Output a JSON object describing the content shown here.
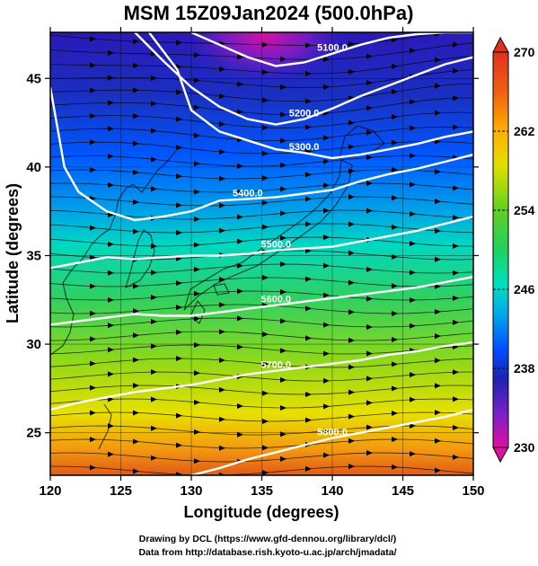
{
  "chart_data": {
    "type": "heatmap",
    "title": "MSM 15Z09Jan2024 (500.0hPa)",
    "xlabel": "Longitude (degrees)",
    "ylabel": "Latitude  (degrees)",
    "xlim": [
      120,
      150
    ],
    "ylim": [
      22.6,
      47.6
    ],
    "x_ticks": [
      120,
      125,
      130,
      135,
      140,
      145,
      150
    ],
    "y_ticks": [
      25,
      30,
      35,
      40,
      45
    ],
    "x_tick_labels": [
      "120",
      "125",
      "130",
      "135",
      "140",
      "145",
      "150"
    ],
    "y_tick_labels": [
      "25",
      "30",
      "35",
      "40",
      "45"
    ],
    "colorbar": {
      "min": 230,
      "max": 270,
      "tick_labels": [
        "270",
        "262",
        "254",
        "246",
        "238",
        "230"
      ],
      "tick_values": [
        270,
        262,
        254,
        246,
        238,
        230
      ],
      "colors": [
        "#e0109f",
        "#7a20c8",
        "#1a24b0",
        "#0050ff",
        "#00a8e8",
        "#00e0c0",
        "#20d060",
        "#60d020",
        "#e0e000",
        "#ffb000",
        "#f06010",
        "#e03020"
      ],
      "color_stops": [
        230,
        233.5,
        237,
        240,
        243.5,
        246.5,
        250,
        254,
        258.5,
        262,
        266,
        270
      ]
    },
    "contours": [
      {
        "label": "5100.0",
        "lons": [
          130,
          132,
          134,
          136,
          138,
          140,
          142,
          144,
          146,
          148,
          150
        ],
        "lats": [
          47.6,
          46.9,
          46.2,
          45.7,
          45.9,
          46.4,
          46.9,
          47.3,
          47.5,
          47.6,
          47.6
        ]
      },
      {
        "label": "5200.0",
        "lons": [
          126,
          128,
          130,
          132,
          134,
          136,
          138,
          140,
          142,
          144,
          146,
          148,
          150
        ],
        "lats": [
          47.6,
          46.0,
          44.5,
          43.4,
          42.7,
          42.4,
          42.7,
          43.3,
          44.0,
          44.6,
          45.2,
          45.8,
          46.2
        ]
      },
      {
        "label": "5300.0",
        "lons": [
          127,
          129,
          130,
          132,
          134,
          136,
          138,
          140,
          142,
          144,
          146,
          148,
          150
        ],
        "lats": [
          47.6,
          45.5,
          43.2,
          42.0,
          41.5,
          41.0,
          40.8,
          40.5,
          40.7,
          41.0,
          41.3,
          41.7,
          42.0
        ]
      },
      {
        "label": "5400.0",
        "lons": [
          120,
          121,
          122,
          124,
          126,
          128,
          130,
          132,
          134,
          136,
          138,
          140,
          142,
          144,
          146,
          148,
          150
        ],
        "lats": [
          44.5,
          40.0,
          38.6,
          37.5,
          37.0,
          37.2,
          37.5,
          38.1,
          38.2,
          38.3,
          38.5,
          38.7,
          39.2,
          39.6,
          39.9,
          40.3,
          40.7
        ]
      },
      {
        "label": "5500.0",
        "lons": [
          120,
          122,
          124,
          126,
          128,
          130,
          132,
          134,
          136,
          138,
          140,
          142,
          144,
          146,
          148,
          150
        ],
        "lats": [
          34.3,
          34.6,
          34.9,
          34.8,
          34.9,
          35.0,
          35.0,
          35.1,
          35.3,
          35.4,
          35.5,
          35.8,
          36.1,
          36.4,
          36.8,
          37.2
        ]
      },
      {
        "label": "5600.0",
        "lons": [
          120,
          122,
          124,
          126,
          128,
          130,
          132,
          134,
          136,
          138,
          140,
          142,
          144,
          146,
          148,
          150
        ],
        "lats": [
          31.1,
          31.3,
          31.5,
          31.7,
          31.6,
          31.6,
          31.8,
          32.0,
          32.2,
          32.4,
          32.6,
          32.8,
          33.0,
          33.2,
          33.5,
          33.8
        ]
      },
      {
        "label": "5700.0",
        "lons": [
          120,
          122,
          124,
          126,
          128,
          130,
          132,
          134,
          136,
          138,
          140,
          142,
          144,
          146,
          148,
          150
        ],
        "lats": [
          26.3,
          26.7,
          27.0,
          27.3,
          27.5,
          27.7,
          28.0,
          28.3,
          28.5,
          28.7,
          28.9,
          29.1,
          29.4,
          29.6,
          29.9,
          30.1
        ]
      },
      {
        "label": "5800.0",
        "lons": [
          130,
          132,
          134,
          136,
          138,
          140,
          142,
          144,
          146,
          148,
          150
        ],
        "lats": [
          22.6,
          23.0,
          23.5,
          23.9,
          24.3,
          24.7,
          25.0,
          25.3,
          25.6,
          25.9,
          26.3
        ]
      }
    ],
    "credits": [
      "Drawing by DCL (https://www.gfd-dennou.org/library/dcl/)",
      "Data from http://database.rish.kyoto-u.ac.jp/arch/jmadata/"
    ]
  }
}
